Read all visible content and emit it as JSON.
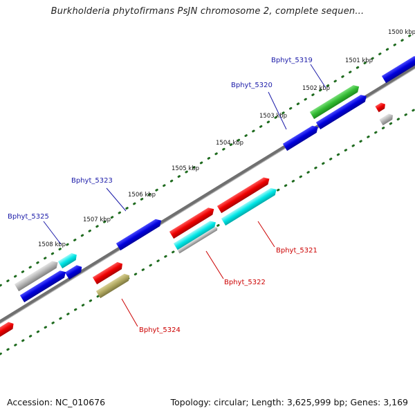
{
  "title": "Burkholderia phytofirmans PsJN chromosome 2, complete sequen...",
  "footer": {
    "accession": "Accession: NC_010676",
    "stats": "Topology: circular; Length: 3,625,999 bp; Genes: 3,169"
  },
  "ticks": [
    "1500 kbp",
    "1501 kbp",
    "1502 kbp",
    "1503 kbp",
    "1504 kbp",
    "1505 kbp",
    "1506 kbp",
    "1507 kbp",
    "1508 kbp"
  ],
  "labels": [
    {
      "text": "Bphyt_5319",
      "strand": "forward",
      "color": "#1a1aa8"
    },
    {
      "text": "Bphyt_5320",
      "strand": "forward",
      "color": "#1a1aa8"
    },
    {
      "text": "Bphyt_5321",
      "strand": "reverse",
      "color": "#cc0000"
    },
    {
      "text": "Bphyt_5322",
      "strand": "reverse",
      "color": "#cc0000"
    },
    {
      "text": "Bphyt_5323",
      "strand": "forward",
      "color": "#1a1aa8"
    },
    {
      "text": "Bphyt_5324",
      "strand": "reverse",
      "color": "#cc0000"
    },
    {
      "text": "Bphyt_5325",
      "strand": "forward",
      "color": "#1a1aa8"
    }
  ],
  "colors": {
    "blue": "#0000dd",
    "green": "#33bb33",
    "red": "#ee0000",
    "cyan": "#00e6e6",
    "gray": "#b5b5b5",
    "olive": "#b0a860",
    "axis": "#808080",
    "tick_dots": "#1f6b1f"
  }
}
